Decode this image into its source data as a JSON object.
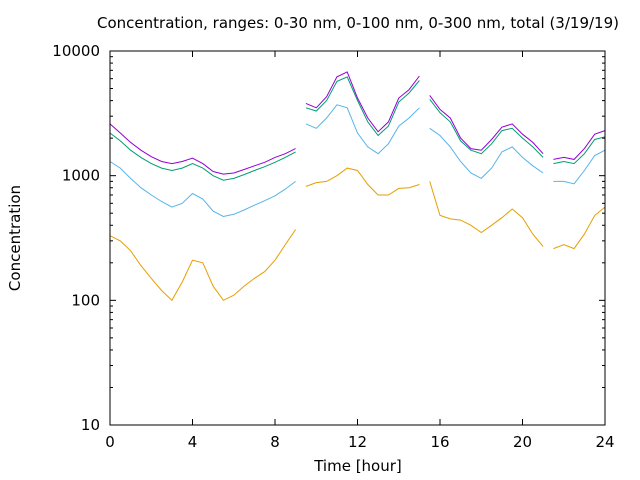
{
  "chart_data": {
    "type": "line",
    "title": "Concentration, ranges: 0-30 nm, 0-100 nm, 0-300 nm, total (3/19/19)",
    "xlabel": "Time [hour]",
    "ylabel": "Concentration",
    "xlim": [
      0,
      24
    ],
    "ylim": [
      10,
      10000
    ],
    "yscale": "log",
    "grid": false,
    "xticks": [
      "0",
      "4",
      "8",
      "12",
      "16",
      "20",
      "24"
    ],
    "yticks": [
      "10",
      "100",
      "1000",
      "10000"
    ],
    "x": [
      0.0,
      0.5,
      1.0,
      1.5,
      2.0,
      2.5,
      3.0,
      3.5,
      4.0,
      4.5,
      5.0,
      5.5,
      6.0,
      6.5,
      7.0,
      7.5,
      8.0,
      8.5,
      9.0,
      9.5,
      10.0,
      10.5,
      11.0,
      11.5,
      12.0,
      12.5,
      13.0,
      13.5,
      14.0,
      14.5,
      15.0,
      15.5,
      16.0,
      16.5,
      17.0,
      17.5,
      18.0,
      18.5,
      19.0,
      19.5,
      20.0,
      20.5,
      21.0,
      21.5,
      22.0,
      22.5,
      23.0,
      23.5,
      24.0
    ],
    "series": [
      {
        "color": "#e69f00",
        "values": [
          330,
          300,
          250,
          190,
          150,
          120,
          100,
          140,
          210,
          200,
          130,
          100,
          110,
          130,
          150,
          170,
          210,
          280,
          370,
          820,
          880,
          900,
          1000,
          1150,
          1100,
          850,
          700,
          700,
          790,
          800,
          850,
          900,
          480,
          450,
          440,
          400,
          350,
          400,
          460,
          540,
          460,
          340,
          270,
          260,
          280,
          260,
          340,
          480,
          560
        ]
      },
      {
        "color": "#56b4e9",
        "values": [
          1300,
          1150,
          950,
          800,
          700,
          620,
          560,
          600,
          720,
          650,
          520,
          470,
          490,
          530,
          580,
          630,
          690,
          780,
          900,
          2600,
          2400,
          2900,
          3700,
          3500,
          2200,
          1700,
          1500,
          1800,
          2500,
          2900,
          3500,
          2400,
          2100,
          1700,
          1300,
          1050,
          950,
          1150,
          1550,
          1700,
          1400,
          1200,
          1050,
          900,
          900,
          860,
          1100,
          1450,
          1600
        ]
      },
      {
        "color": "#009e73",
        "values": [
          2200,
          1900,
          1600,
          1400,
          1250,
          1150,
          1100,
          1150,
          1250,
          1150,
          1000,
          920,
          950,
          1020,
          1100,
          1180,
          1280,
          1400,
          1550,
          3500,
          3300,
          4000,
          5700,
          6200,
          4000,
          2700,
          2100,
          2500,
          3900,
          4600,
          5800,
          4100,
          3200,
          2700,
          1900,
          1600,
          1500,
          1800,
          2300,
          2400,
          2000,
          1700,
          1400,
          1250,
          1300,
          1250,
          1500,
          1950,
          2050
        ]
      },
      {
        "color": "#9400d3",
        "values": [
          2600,
          2200,
          1850,
          1600,
          1420,
          1300,
          1250,
          1300,
          1380,
          1250,
          1080,
          1030,
          1050,
          1120,
          1200,
          1280,
          1400,
          1500,
          1650,
          3800,
          3500,
          4300,
          6200,
          6800,
          4200,
          2900,
          2250,
          2700,
          4200,
          4900,
          6300,
          4400,
          3400,
          2900,
          2000,
          1650,
          1600,
          1950,
          2450,
          2600,
          2150,
          1850,
          1500,
          1350,
          1400,
          1350,
          1650,
          2150,
          2300
        ]
      }
    ]
  }
}
